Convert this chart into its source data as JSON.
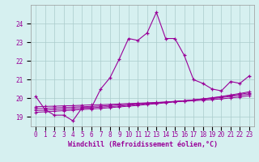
{
  "xlabel": "Windchill (Refroidissement éolien,°C)",
  "background_color": "#d6f0f0",
  "line_color": "#990099",
  "grid_color": "#aacccc",
  "x_hours": [
    0,
    1,
    2,
    3,
    4,
    5,
    6,
    7,
    8,
    9,
    10,
    11,
    12,
    13,
    14,
    15,
    16,
    17,
    18,
    19,
    20,
    21,
    22,
    23
  ],
  "temp_main": [
    20.1,
    19.4,
    19.1,
    19.1,
    18.8,
    19.5,
    19.5,
    20.5,
    21.1,
    22.1,
    23.2,
    23.1,
    23.5,
    24.6,
    23.2,
    23.2,
    22.3,
    21.0,
    20.8,
    20.5,
    20.4,
    20.9,
    20.8,
    21.2
  ],
  "wc_line1": [
    19.55,
    19.57,
    19.58,
    19.6,
    19.61,
    19.63,
    19.65,
    19.66,
    19.68,
    19.7,
    19.72,
    19.74,
    19.76,
    19.78,
    19.8,
    19.82,
    19.84,
    19.87,
    19.9,
    19.93,
    19.97,
    20.02,
    20.07,
    20.14
  ],
  "wc_line2": [
    19.45,
    19.47,
    19.49,
    19.51,
    19.53,
    19.55,
    19.57,
    19.59,
    19.62,
    19.65,
    19.68,
    19.71,
    19.74,
    19.77,
    19.8,
    19.84,
    19.87,
    19.91,
    19.95,
    19.99,
    20.04,
    20.1,
    20.16,
    20.22
  ],
  "wc_line3": [
    19.35,
    19.37,
    19.4,
    19.42,
    19.45,
    19.47,
    19.5,
    19.53,
    19.56,
    19.59,
    19.63,
    19.67,
    19.71,
    19.75,
    19.79,
    19.83,
    19.87,
    19.92,
    19.97,
    20.02,
    20.08,
    20.15,
    20.22,
    20.29
  ],
  "wc_line4": [
    19.25,
    19.28,
    19.31,
    19.34,
    19.37,
    19.4,
    19.43,
    19.46,
    19.5,
    19.54,
    19.58,
    19.62,
    19.67,
    19.71,
    19.76,
    19.81,
    19.86,
    19.91,
    19.97,
    20.03,
    20.1,
    20.18,
    20.26,
    20.35
  ],
  "ylim_min": 18.5,
  "ylim_max": 25.0,
  "yticks": [
    19,
    20,
    21,
    22,
    23,
    24
  ],
  "tick_fontsize": 5.5,
  "xlabel_fontsize": 6.0
}
